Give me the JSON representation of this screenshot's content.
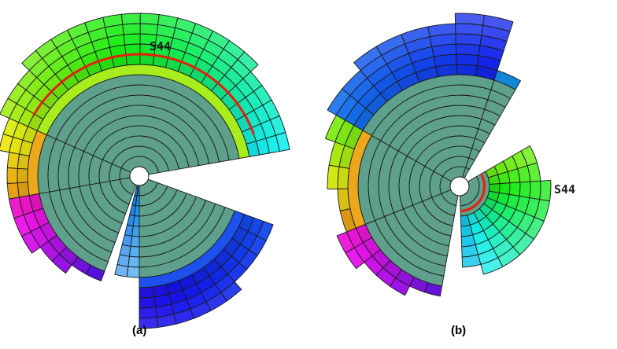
{
  "figure": {
    "panels": [
      {
        "caption": "(a)",
        "node_label": "S44"
      },
      {
        "caption": "(b)",
        "node_label": "S44"
      }
    ],
    "colors": {
      "core": "#5fa08c",
      "highlight": "#e61e0a",
      "outline": "#1a1a1a"
    }
  }
}
